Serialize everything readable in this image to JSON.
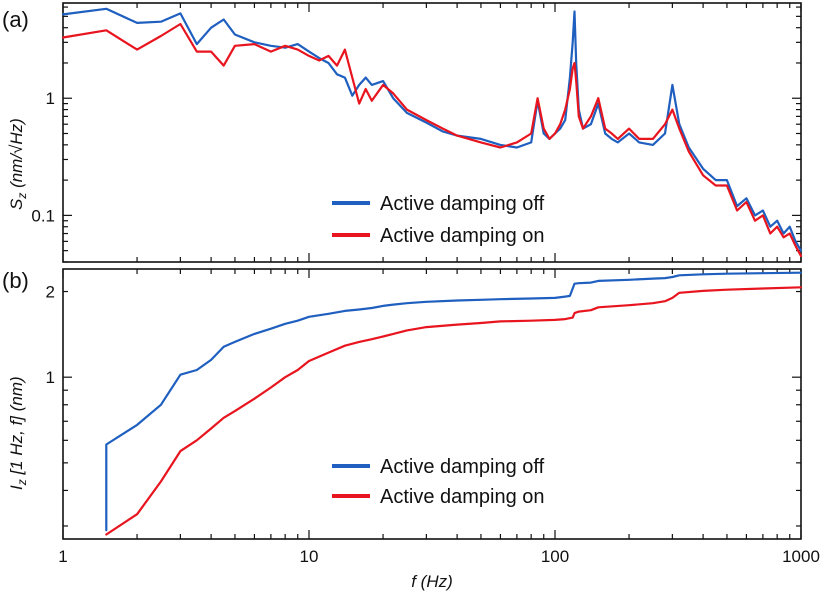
{
  "chart_data": [
    {
      "panel_label": "(a)",
      "type": "line",
      "xscale": "log",
      "yscale": "log",
      "xlim": [
        1,
        1000
      ],
      "ylim": [
        0.04,
        6.5
      ],
      "ylabel": "S_z (nm/√Hz)",
      "ylabel_base": "S",
      "ylabel_sub": "z",
      "ylabel_rest": " (nm/√Hz)",
      "yticks": [
        {
          "v": 0.1,
          "label": "0.1"
        },
        {
          "v": 1,
          "label": "1"
        }
      ],
      "legend_position": "center-right",
      "series": [
        {
          "name": "Active damping off",
          "color": "#1f5fbf",
          "x": [
            1,
            1.5,
            2,
            2.5,
            3,
            3.5,
            4,
            4.5,
            5,
            6,
            7,
            8,
            9,
            10,
            11,
            12,
            13,
            14,
            15,
            16,
            17,
            18,
            20,
            22,
            25,
            30,
            35,
            40,
            50,
            60,
            70,
            80,
            85,
            90,
            95,
            100,
            105,
            110,
            115,
            118,
            120,
            122,
            125,
            130,
            140,
            150,
            160,
            170,
            180,
            200,
            220,
            250,
            280,
            300,
            320,
            350,
            400,
            450,
            500,
            550,
            600,
            650,
            700,
            750,
            800,
            850,
            900,
            950,
            1000
          ],
          "y": [
            5.2,
            5.8,
            4.4,
            4.5,
            5.3,
            2.9,
            4.0,
            4.7,
            3.5,
            3.0,
            2.8,
            2.7,
            2.9,
            2.5,
            2.2,
            2.0,
            1.6,
            1.5,
            1.05,
            1.3,
            1.5,
            1.3,
            1.4,
            1.0,
            0.75,
            0.62,
            0.52,
            0.48,
            0.45,
            0.4,
            0.38,
            0.42,
            0.95,
            0.5,
            0.45,
            0.5,
            0.55,
            0.65,
            1.5,
            3.0,
            5.5,
            2.0,
            0.8,
            0.55,
            0.6,
            0.9,
            0.5,
            0.45,
            0.42,
            0.5,
            0.42,
            0.4,
            0.5,
            1.3,
            0.6,
            0.38,
            0.25,
            0.2,
            0.2,
            0.12,
            0.14,
            0.1,
            0.11,
            0.08,
            0.09,
            0.07,
            0.08,
            0.06,
            0.05
          ]
        },
        {
          "name": "Active damping on",
          "color": "#e8141e",
          "x": [
            1,
            1.5,
            2,
            2.5,
            3,
            3.5,
            4,
            4.5,
            5,
            6,
            7,
            8,
            9,
            10,
            11,
            12,
            13,
            14,
            15,
            16,
            17,
            18,
            20,
            22,
            25,
            30,
            35,
            40,
            50,
            60,
            70,
            80,
            85,
            90,
            95,
            100,
            105,
            110,
            115,
            118,
            120,
            122,
            125,
            130,
            140,
            150,
            160,
            170,
            180,
            200,
            220,
            250,
            280,
            300,
            320,
            350,
            400,
            450,
            500,
            550,
            600,
            650,
            700,
            750,
            800,
            850,
            900,
            950,
            1000
          ],
          "y": [
            3.3,
            3.8,
            2.6,
            3.4,
            4.3,
            2.5,
            2.5,
            1.9,
            2.8,
            2.9,
            2.5,
            2.8,
            2.6,
            2.3,
            2.1,
            2.3,
            1.9,
            2.6,
            1.5,
            0.9,
            1.2,
            0.95,
            1.3,
            1.1,
            0.8,
            0.65,
            0.55,
            0.48,
            0.42,
            0.38,
            0.42,
            0.5,
            1.0,
            0.55,
            0.45,
            0.5,
            0.6,
            0.8,
            1.2,
            1.8,
            2.0,
            1.4,
            0.7,
            0.55,
            0.7,
            1.0,
            0.55,
            0.5,
            0.45,
            0.55,
            0.45,
            0.45,
            0.6,
            0.8,
            0.55,
            0.35,
            0.22,
            0.18,
            0.18,
            0.11,
            0.13,
            0.09,
            0.1,
            0.07,
            0.08,
            0.065,
            0.07,
            0.055,
            0.045
          ]
        }
      ]
    },
    {
      "panel_label": "(b)",
      "type": "line",
      "xscale": "log",
      "yscale": "log",
      "xlim": [
        1,
        1000
      ],
      "ylim": [
        0.27,
        2.4
      ],
      "xlabel": "f (Hz)",
      "ylabel": "I_z [1 Hz, f] (nm)",
      "ylabel_base": "I",
      "ylabel_sub": "z",
      "ylabel_rest": " [1 Hz, f] (nm)",
      "yticks": [
        {
          "v": 1,
          "label": "1"
        },
        {
          "v": 2,
          "label": "2"
        }
      ],
      "xticks": [
        {
          "v": 1,
          "label": "1"
        },
        {
          "v": 10,
          "label": "10"
        },
        {
          "v": 100,
          "label": "100"
        },
        {
          "v": 1000,
          "label": "1000"
        }
      ],
      "legend_position": "center-right",
      "series": [
        {
          "name": "Active damping off",
          "color": "#1f5fbf",
          "x": [
            1.5,
            1.5,
            2,
            2.5,
            3,
            3.5,
            4,
            4.5,
            5,
            6,
            7,
            8,
            9,
            10,
            12,
            14,
            16,
            18,
            20,
            22,
            25,
            30,
            40,
            50,
            60,
            80,
            100,
            110,
            115,
            118,
            120,
            125,
            140,
            150,
            200,
            250,
            280,
            300,
            320,
            400,
            500,
            700,
            1000
          ],
          "y": [
            0.29,
            0.58,
            0.68,
            0.8,
            1.02,
            1.06,
            1.15,
            1.28,
            1.33,
            1.42,
            1.48,
            1.54,
            1.58,
            1.63,
            1.67,
            1.71,
            1.73,
            1.75,
            1.78,
            1.8,
            1.82,
            1.84,
            1.86,
            1.87,
            1.88,
            1.89,
            1.9,
            1.92,
            1.93,
            2.05,
            2.13,
            2.14,
            2.15,
            2.18,
            2.2,
            2.22,
            2.23,
            2.25,
            2.28,
            2.3,
            2.31,
            2.32,
            2.33
          ]
        },
        {
          "name": "Active damping on",
          "color": "#e8141e",
          "x": [
            1.5,
            2,
            2.5,
            3,
            3.5,
            4,
            4.5,
            5,
            6,
            7,
            8,
            9,
            10,
            12,
            14,
            16,
            18,
            20,
            22,
            25,
            30,
            40,
            50,
            60,
            80,
            100,
            110,
            118,
            120,
            125,
            140,
            150,
            200,
            250,
            280,
            300,
            320,
            400,
            500,
            700,
            1000
          ],
          "y": [
            0.28,
            0.33,
            0.43,
            0.55,
            0.6,
            0.66,
            0.72,
            0.76,
            0.84,
            0.92,
            1.0,
            1.06,
            1.14,
            1.22,
            1.29,
            1.33,
            1.36,
            1.39,
            1.42,
            1.46,
            1.5,
            1.53,
            1.55,
            1.57,
            1.58,
            1.59,
            1.6,
            1.62,
            1.68,
            1.7,
            1.72,
            1.76,
            1.79,
            1.82,
            1.85,
            1.9,
            1.98,
            2.01,
            2.03,
            2.05,
            2.07
          ]
        }
      ]
    }
  ]
}
